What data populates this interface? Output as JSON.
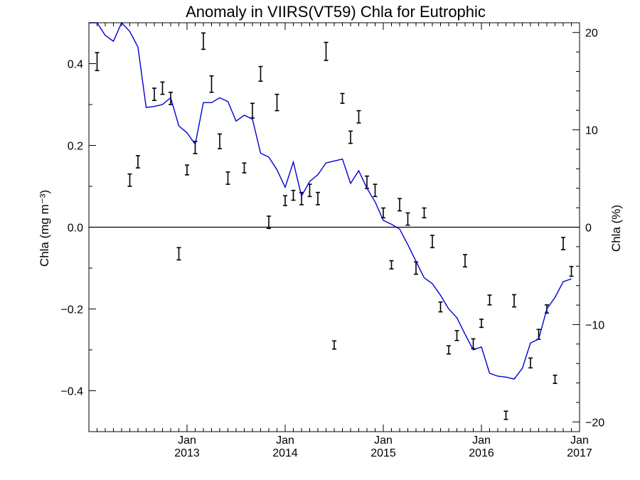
{
  "chart_data": {
    "type": "line",
    "title": "Anomaly in VIIRS(VT59) Chla for Eutrophic",
    "ylabel_left": "Chla (mg m⁻³)",
    "ylabel_right": "Chla (%)",
    "xlim": [
      "2012-01",
      "2017-01"
    ],
    "ylim_left": [
      -0.5,
      0.5
    ],
    "ylim_right": [
      -21,
      21
    ],
    "x_ticks": [
      {
        "date": "2013-01",
        "line1": "Jan",
        "line2": "2013"
      },
      {
        "date": "2014-01",
        "line1": "Jan",
        "line2": "2014"
      },
      {
        "date": "2015-01",
        "line1": "Jan",
        "line2": "2015"
      },
      {
        "date": "2016-01",
        "line1": "Jan",
        "line2": "2016"
      },
      {
        "date": "2017-01",
        "line1": "Jan",
        "line2": "2017"
      }
    ],
    "y_ticks_left": [
      "0.4",
      "0.2",
      "0.0",
      "−0.2",
      "−0.4"
    ],
    "y_ticks_left_values": [
      0.4,
      0.2,
      0.0,
      -0.2,
      -0.4
    ],
    "y_ticks_right": [
      "20",
      "10",
      "0",
      "−10",
      "−20"
    ],
    "y_ticks_right_values": [
      20,
      10,
      0,
      -10,
      -20
    ],
    "zero_line": true,
    "series": [
      {
        "kind": "errorbar",
        "axis": "left",
        "color": "#000000",
        "points": [
          {
            "date": "2012-02",
            "y": 0.405,
            "err": 0.022
          },
          {
            "date": "2012-06",
            "y": 0.115,
            "err": 0.015
          },
          {
            "date": "2012-07",
            "y": 0.16,
            "err": 0.015
          },
          {
            "date": "2012-09",
            "y": 0.325,
            "err": 0.015
          },
          {
            "date": "2012-10",
            "y": 0.34,
            "err": 0.015
          },
          {
            "date": "2012-11",
            "y": 0.315,
            "err": 0.015
          },
          {
            "date": "2012-12",
            "y": -0.065,
            "err": 0.015
          },
          {
            "date": "2013-01",
            "y": 0.14,
            "err": 0.012
          },
          {
            "date": "2013-02",
            "y": 0.195,
            "err": 0.015
          },
          {
            "date": "2013-03",
            "y": 0.455,
            "err": 0.02
          },
          {
            "date": "2013-04",
            "y": 0.35,
            "err": 0.02
          },
          {
            "date": "2013-05",
            "y": 0.21,
            "err": 0.018
          },
          {
            "date": "2013-06",
            "y": 0.12,
            "err": 0.015
          },
          {
            "date": "2013-08",
            "y": 0.145,
            "err": 0.012
          },
          {
            "date": "2013-09",
            "y": 0.285,
            "err": 0.018
          },
          {
            "date": "2013-10",
            "y": 0.375,
            "err": 0.018
          },
          {
            "date": "2013-11",
            "y": 0.012,
            "err": 0.015
          },
          {
            "date": "2013-12",
            "y": 0.305,
            "err": 0.02
          },
          {
            "date": "2014-01",
            "y": 0.065,
            "err": 0.012
          },
          {
            "date": "2014-02",
            "y": 0.078,
            "err": 0.012
          },
          {
            "date": "2014-03",
            "y": 0.07,
            "err": 0.015
          },
          {
            "date": "2014-04",
            "y": 0.09,
            "err": 0.015
          },
          {
            "date": "2014-05",
            "y": 0.07,
            "err": 0.015
          },
          {
            "date": "2014-06",
            "y": 0.43,
            "err": 0.022
          },
          {
            "date": "2014-07",
            "y": -0.288,
            "err": 0.01
          },
          {
            "date": "2014-08",
            "y": 0.315,
            "err": 0.012
          },
          {
            "date": "2014-09",
            "y": 0.22,
            "err": 0.015
          },
          {
            "date": "2014-10",
            "y": 0.27,
            "err": 0.015
          },
          {
            "date": "2014-11",
            "y": 0.11,
            "err": 0.015
          },
          {
            "date": "2014-12",
            "y": 0.09,
            "err": 0.015
          },
          {
            "date": "2015-01",
            "y": 0.035,
            "err": 0.012
          },
          {
            "date": "2015-02",
            "y": -0.092,
            "err": 0.01
          },
          {
            "date": "2015-03",
            "y": 0.055,
            "err": 0.015
          },
          {
            "date": "2015-04",
            "y": 0.02,
            "err": 0.015
          },
          {
            "date": "2015-05",
            "y": -0.1,
            "err": 0.015
          },
          {
            "date": "2015-06",
            "y": 0.035,
            "err": 0.012
          },
          {
            "date": "2015-07",
            "y": -0.035,
            "err": 0.015
          },
          {
            "date": "2015-08",
            "y": -0.195,
            "err": 0.012
          },
          {
            "date": "2015-09",
            "y": -0.3,
            "err": 0.01
          },
          {
            "date": "2015-10",
            "y": -0.265,
            "err": 0.012
          },
          {
            "date": "2015-11",
            "y": -0.082,
            "err": 0.015
          },
          {
            "date": "2015-12",
            "y": -0.285,
            "err": 0.012
          },
          {
            "date": "2016-01",
            "y": -0.235,
            "err": 0.01
          },
          {
            "date": "2016-02",
            "y": -0.178,
            "err": 0.012
          },
          {
            "date": "2016-04",
            "y": -0.46,
            "err": 0.01
          },
          {
            "date": "2016-05",
            "y": -0.18,
            "err": 0.015
          },
          {
            "date": "2016-07",
            "y": -0.332,
            "err": 0.012
          },
          {
            "date": "2016-08",
            "y": -0.262,
            "err": 0.012
          },
          {
            "date": "2016-09",
            "y": -0.2,
            "err": 0.01
          },
          {
            "date": "2016-10",
            "y": -0.372,
            "err": 0.01
          },
          {
            "date": "2016-11",
            "y": -0.04,
            "err": 0.015
          },
          {
            "date": "2016-12",
            "y": -0.108,
            "err": 0.012
          }
        ]
      },
      {
        "kind": "line",
        "axis": "right",
        "color": "#0000d0",
        "points": [
          {
            "date": "2012-01",
            "y": 21.2
          },
          {
            "date": "2012-02",
            "y": 21.0
          },
          {
            "date": "2012-03",
            "y": 19.7
          },
          {
            "date": "2012-04",
            "y": 19.1
          },
          {
            "date": "2012-05",
            "y": 21.4
          },
          {
            "date": "2012-06",
            "y": 20.1
          },
          {
            "date": "2012-07",
            "y": 18.5
          },
          {
            "date": "2012-08",
            "y": 12.3
          },
          {
            "date": "2012-09",
            "y": 12.4
          },
          {
            "date": "2012-10",
            "y": 12.6
          },
          {
            "date": "2012-11",
            "y": 13.3
          },
          {
            "date": "2012-12",
            "y": 10.4
          },
          {
            "date": "2013-01",
            "y": 9.7
          },
          {
            "date": "2013-02",
            "y": 8.5
          },
          {
            "date": "2013-03",
            "y": 12.8
          },
          {
            "date": "2013-04",
            "y": 12.8
          },
          {
            "date": "2013-05",
            "y": 13.3
          },
          {
            "date": "2013-06",
            "y": 12.9
          },
          {
            "date": "2013-07",
            "y": 10.9
          },
          {
            "date": "2013-08",
            "y": 11.5
          },
          {
            "date": "2013-09",
            "y": 11.1
          },
          {
            "date": "2013-10",
            "y": 7.6
          },
          {
            "date": "2013-11",
            "y": 7.2
          },
          {
            "date": "2013-12",
            "y": 5.9
          },
          {
            "date": "2014-01",
            "y": 4.1
          },
          {
            "date": "2014-02",
            "y": 6.7
          },
          {
            "date": "2014-03",
            "y": 3.2
          },
          {
            "date": "2014-04",
            "y": 4.7
          },
          {
            "date": "2014-05",
            "y": 5.4
          },
          {
            "date": "2014-06",
            "y": 6.6
          },
          {
            "date": "2014-07",
            "y": 6.8
          },
          {
            "date": "2014-08",
            "y": 7.0
          },
          {
            "date": "2014-09",
            "y": 4.5
          },
          {
            "date": "2014-10",
            "y": 5.8
          },
          {
            "date": "2014-11",
            "y": 4.0
          },
          {
            "date": "2014-12",
            "y": 2.6
          },
          {
            "date": "2015-01",
            "y": 0.7
          },
          {
            "date": "2015-02",
            "y": 0.3
          },
          {
            "date": "2015-03",
            "y": -0.2
          },
          {
            "date": "2015-04",
            "y": -1.8
          },
          {
            "date": "2015-05",
            "y": -3.5
          },
          {
            "date": "2015-06",
            "y": -5.2
          },
          {
            "date": "2015-07",
            "y": -5.8
          },
          {
            "date": "2015-08",
            "y": -7.0
          },
          {
            "date": "2015-09",
            "y": -8.4
          },
          {
            "date": "2015-10",
            "y": -9.3
          },
          {
            "date": "2015-11",
            "y": -11.0
          },
          {
            "date": "2015-12",
            "y": -12.6
          },
          {
            "date": "2016-01",
            "y": -12.3
          },
          {
            "date": "2016-02",
            "y": -15.0
          },
          {
            "date": "2016-03",
            "y": -15.3
          },
          {
            "date": "2016-04",
            "y": -15.4
          },
          {
            "date": "2016-05",
            "y": -15.6
          },
          {
            "date": "2016-06",
            "y": -14.5
          },
          {
            "date": "2016-07",
            "y": -11.9
          },
          {
            "date": "2016-08",
            "y": -11.5
          },
          {
            "date": "2016-09",
            "y": -8.4
          },
          {
            "date": "2016-10",
            "y": -7.2
          },
          {
            "date": "2016-11",
            "y": -5.6
          },
          {
            "date": "2016-12",
            "y": -5.3
          }
        ]
      }
    ]
  }
}
